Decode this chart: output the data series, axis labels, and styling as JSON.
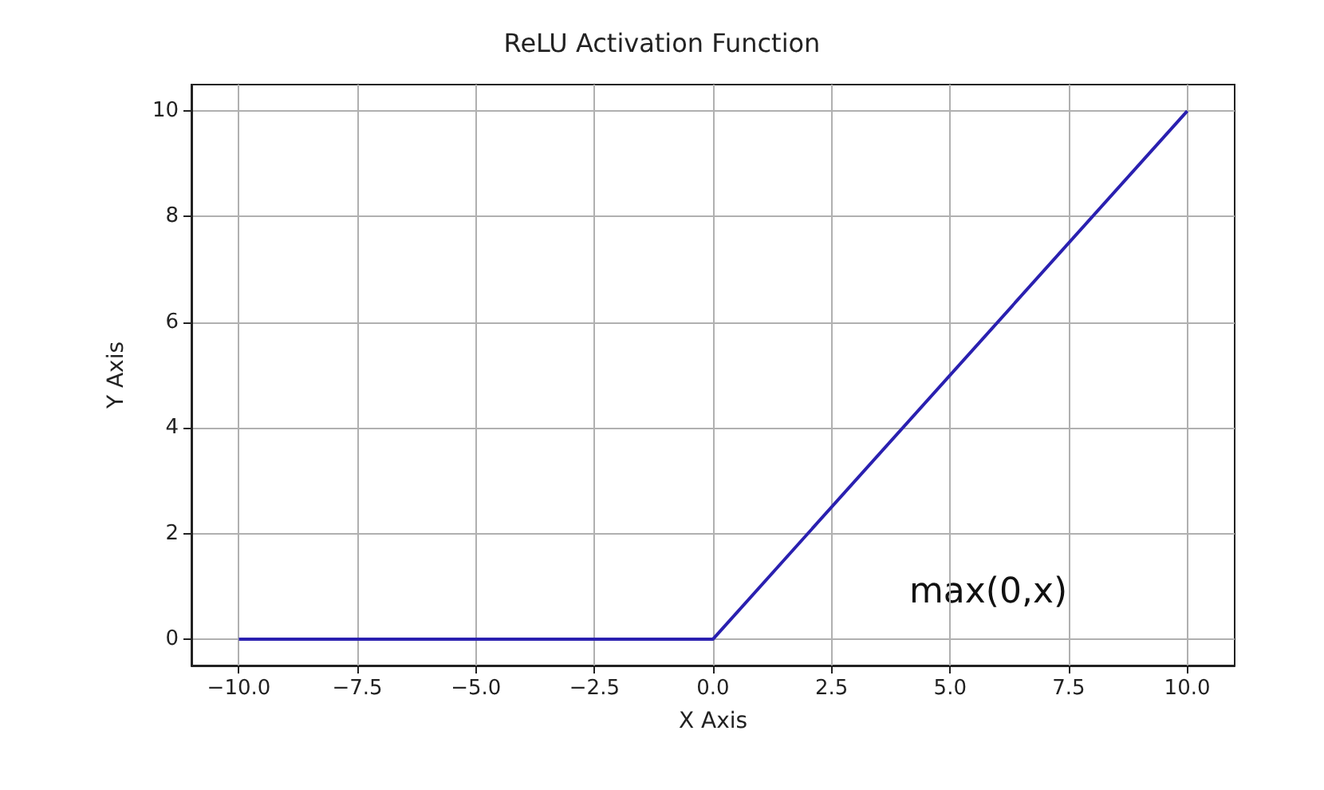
{
  "chart_data": {
    "type": "line",
    "title": "ReLU Activation Function",
    "xlabel": "X Axis",
    "ylabel": "Y Axis",
    "x": [
      -10,
      0,
      10
    ],
    "series": [
      {
        "color": "#2a20b0",
        "values": [
          0,
          0,
          10
        ]
      }
    ],
    "xlim": [
      -11,
      11
    ],
    "xticks": [
      {
        "value": -10,
        "label": "−10.0"
      },
      {
        "value": -7.5,
        "label": "−7.5"
      },
      {
        "value": -5,
        "label": "−5.0"
      },
      {
        "value": -2.5,
        "label": "−2.5"
      },
      {
        "value": 0,
        "label": "0.0"
      },
      {
        "value": 2.5,
        "label": "2.5"
      },
      {
        "value": 5,
        "label": "5.0"
      },
      {
        "value": 7.5,
        "label": "7.5"
      },
      {
        "value": 10,
        "label": "10.0"
      }
    ],
    "ylim": [
      -0.5,
      10.5
    ],
    "yticks": [
      0,
      2,
      4,
      6,
      8,
      10
    ],
    "grid": true,
    "marker": "none",
    "line_style": "solid",
    "annotations": [
      "max(0,x)"
    ]
  }
}
